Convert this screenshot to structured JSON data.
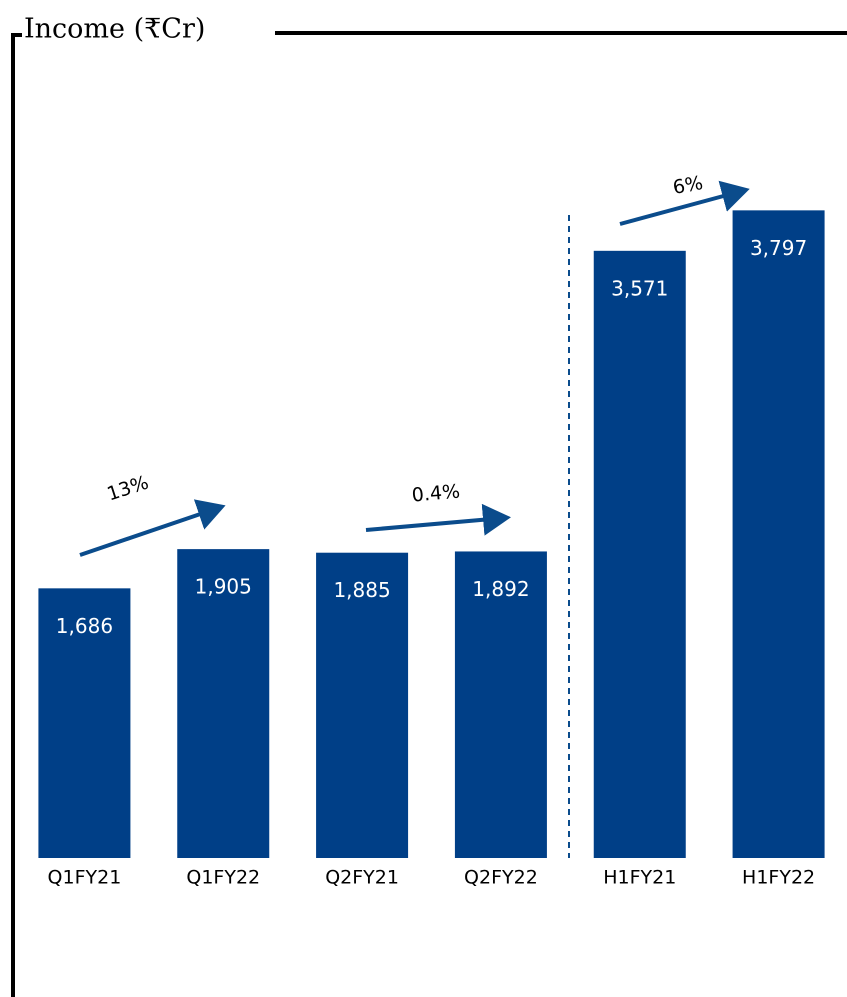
{
  "chart_data": {
    "type": "bar",
    "title": "Income (₹Cr)",
    "categories": [
      "Q1FY21",
      "Q1FY22",
      "Q2FY21",
      "Q2FY22",
      "H1FY21",
      "H1FY22"
    ],
    "values": [
      1686,
      1905,
      1885,
      1892,
      3571,
      3797
    ],
    "value_labels": [
      "1,686",
      "1,905",
      "1,885",
      "1,892",
      "3,571",
      "3,797"
    ],
    "color": "#003f87",
    "ylim": [
      180,
      4000
    ],
    "annotations": [
      "13%",
      "0.4%",
      "6%"
    ]
  }
}
